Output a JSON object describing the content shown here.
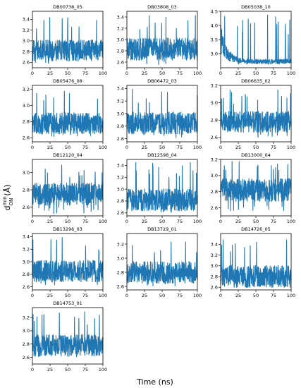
{
  "figure": {
    "xlabel": "Time (ns)",
    "ylabel_main": "d",
    "ylabel_sup": "min",
    "ylabel_sub": "ON",
    "ylabel_unit": "(Å)",
    "line_color": "#1f77b4"
  },
  "chart_data": [
    {
      "type": "line",
      "title": "DB00738_05",
      "xlim": [
        0,
        100
      ],
      "ylim": [
        2.5,
        3.55
      ],
      "xticks": [
        0,
        25,
        50,
        75,
        100
      ],
      "yticks": [
        2.6,
        2.8,
        3.0,
        3.2,
        3.4
      ],
      "ytick_labels": [
        "2.6",
        "2.8",
        "3.0",
        "3.2",
        "3.4"
      ],
      "series_summary": {
        "baseline": 2.82,
        "min": 2.55,
        "max": 3.45,
        "profile": "noisy-flat"
      }
    },
    {
      "type": "line",
      "title": "DB03808_03",
      "xlim": [
        0,
        100
      ],
      "ylim": [
        2.5,
        3.5
      ],
      "xticks": [
        0,
        25,
        50,
        75,
        100
      ],
      "yticks": [
        2.6,
        2.8,
        3.0,
        3.2,
        3.4
      ],
      "ytick_labels": [
        "2.6",
        "2.8",
        "3.0",
        "3.2",
        "3.4"
      ],
      "series_summary": {
        "baseline": 2.83,
        "min": 2.55,
        "max": 3.45,
        "profile": "noisy-flat"
      }
    },
    {
      "type": "line",
      "title": "DB05038_10",
      "xlim": [
        0,
        100
      ],
      "ylim": [
        2.5,
        4.5
      ],
      "xticks": [
        0,
        25,
        50,
        75,
        100
      ],
      "yticks": [
        3.0,
        3.5,
        4.0,
        4.5
      ],
      "ytick_labels": [
        "3.0",
        "3.5",
        "4.0",
        "4.5"
      ],
      "series_summary": {
        "baseline": 2.72,
        "min": 2.6,
        "max": 4.45,
        "profile": "early-spike-decay"
      }
    },
    {
      "type": "line",
      "title": "DB05476_08",
      "xlim": [
        0,
        100
      ],
      "ylim": [
        2.55,
        3.25
      ],
      "xticks": [
        0,
        25,
        50,
        75,
        100
      ],
      "yticks": [
        2.6,
        2.8,
        3.0,
        3.2
      ],
      "ytick_labels": [
        "2.6",
        "2.8",
        "3.0",
        "3.2"
      ],
      "series_summary": {
        "baseline": 2.78,
        "min": 2.6,
        "max": 3.2,
        "profile": "noisy-flat"
      }
    },
    {
      "type": "line",
      "title": "DB06472_03",
      "xlim": [
        0,
        100
      ],
      "ylim": [
        2.55,
        3.45
      ],
      "xticks": [
        0,
        25,
        50,
        75,
        100
      ],
      "yticks": [
        2.6,
        2.8,
        3.0,
        3.2,
        3.4
      ],
      "ytick_labels": [
        "2.6",
        "2.8",
        "3.0",
        "3.2",
        "3.4"
      ],
      "series_summary": {
        "baseline": 2.85,
        "min": 2.6,
        "max": 3.4,
        "profile": "noisy-flat"
      }
    },
    {
      "type": "line",
      "title": "DB06635_02",
      "xlim": [
        0,
        100
      ],
      "ylim": [
        2.55,
        3.2
      ],
      "xticks": [
        0,
        25,
        50,
        75,
        100
      ],
      "yticks": [
        2.6,
        2.8,
        3.0,
        3.2
      ],
      "ytick_labels": [
        "2.6",
        "2.8",
        "3.0",
        "3.2"
      ],
      "series_summary": {
        "baseline": 2.78,
        "min": 2.6,
        "max": 3.15,
        "profile": "noisy-flat"
      }
    },
    {
      "type": "line",
      "title": "DB12120_04",
      "xlim": [
        0,
        100
      ],
      "ylim": [
        2.5,
        3.15
      ],
      "xticks": [
        0,
        25,
        50,
        75,
        100
      ],
      "yticks": [
        2.6,
        2.8,
        3.0
      ],
      "ytick_labels": [
        "2.6",
        "2.8",
        "3.0"
      ],
      "series_summary": {
        "baseline": 2.75,
        "min": 2.52,
        "max": 3.1,
        "profile": "noisy-flat"
      }
    },
    {
      "type": "line",
      "title": "DB12598_04",
      "xlim": [
        0,
        100
      ],
      "ylim": [
        2.55,
        3.5
      ],
      "xticks": [
        0,
        25,
        50,
        75,
        100
      ],
      "yticks": [
        2.6,
        2.8,
        3.0,
        3.2,
        3.4
      ],
      "ytick_labels": [
        "2.6",
        "2.8",
        "3.0",
        "3.2",
        "3.4"
      ],
      "series_summary": {
        "baseline": 2.82,
        "min": 2.6,
        "max": 3.45,
        "profile": "noisy-flat"
      }
    },
    {
      "type": "line",
      "title": "DB13000_04",
      "xlim": [
        0,
        100
      ],
      "ylim": [
        2.5,
        3.2
      ],
      "xticks": [
        0,
        25,
        50,
        75,
        100
      ],
      "yticks": [
        2.6,
        2.8,
        3.0,
        3.2
      ],
      "ytick_labels": [
        "2.6",
        "2.8",
        "3.0",
        "3.2"
      ],
      "series_summary": {
        "baseline": 2.82,
        "min": 2.55,
        "max": 3.2,
        "profile": "noisy-flat"
      }
    },
    {
      "type": "line",
      "title": "DB13296_03",
      "xlim": [
        0,
        100
      ],
      "ylim": [
        2.55,
        3.45
      ],
      "xticks": [
        0,
        25,
        50,
        75,
        100
      ],
      "yticks": [
        2.6,
        2.8,
        3.0,
        3.2,
        3.4
      ],
      "ytick_labels": [
        "2.6",
        "2.8",
        "3.0",
        "3.2",
        "3.4"
      ],
      "series_summary": {
        "baseline": 2.85,
        "min": 2.6,
        "max": 3.4,
        "profile": "noisy-flat"
      }
    },
    {
      "type": "line",
      "title": "DB13729_01",
      "xlim": [
        0,
        100
      ],
      "ylim": [
        2.55,
        3.35
      ],
      "xticks": [
        0,
        25,
        50,
        75,
        100
      ],
      "yticks": [
        2.6,
        2.8,
        3.0,
        3.2
      ],
      "ytick_labels": [
        "2.6",
        "2.8",
        "3.0",
        "3.2"
      ],
      "series_summary": {
        "baseline": 2.8,
        "min": 2.6,
        "max": 3.3,
        "profile": "noisy-flat"
      }
    },
    {
      "type": "line",
      "title": "DB14726_05",
      "xlim": [
        0,
        100
      ],
      "ylim": [
        2.55,
        3.6
      ],
      "xticks": [
        0,
        25,
        50,
        75,
        100
      ],
      "yticks": [
        2.6,
        2.8,
        3.0,
        3.2,
        3.4
      ],
      "ytick_labels": [
        "2.6",
        "2.8",
        "3.0",
        "3.2",
        "3.4"
      ],
      "series_summary": {
        "baseline": 2.8,
        "min": 2.6,
        "max": 3.55,
        "profile": "noisy-flat"
      }
    },
    {
      "type": "line",
      "title": "DB14753_01",
      "xlim": [
        0,
        100
      ],
      "ylim": [
        2.5,
        3.35
      ],
      "xticks": [
        0,
        25,
        50,
        75,
        100
      ],
      "yticks": [
        2.6,
        2.8,
        3.0,
        3.2
      ],
      "ytick_labels": [
        "2.6",
        "2.8",
        "3.0",
        "3.2"
      ],
      "series_summary": {
        "baseline": 2.78,
        "min": 2.55,
        "max": 3.3,
        "profile": "noisy-flat"
      }
    }
  ]
}
